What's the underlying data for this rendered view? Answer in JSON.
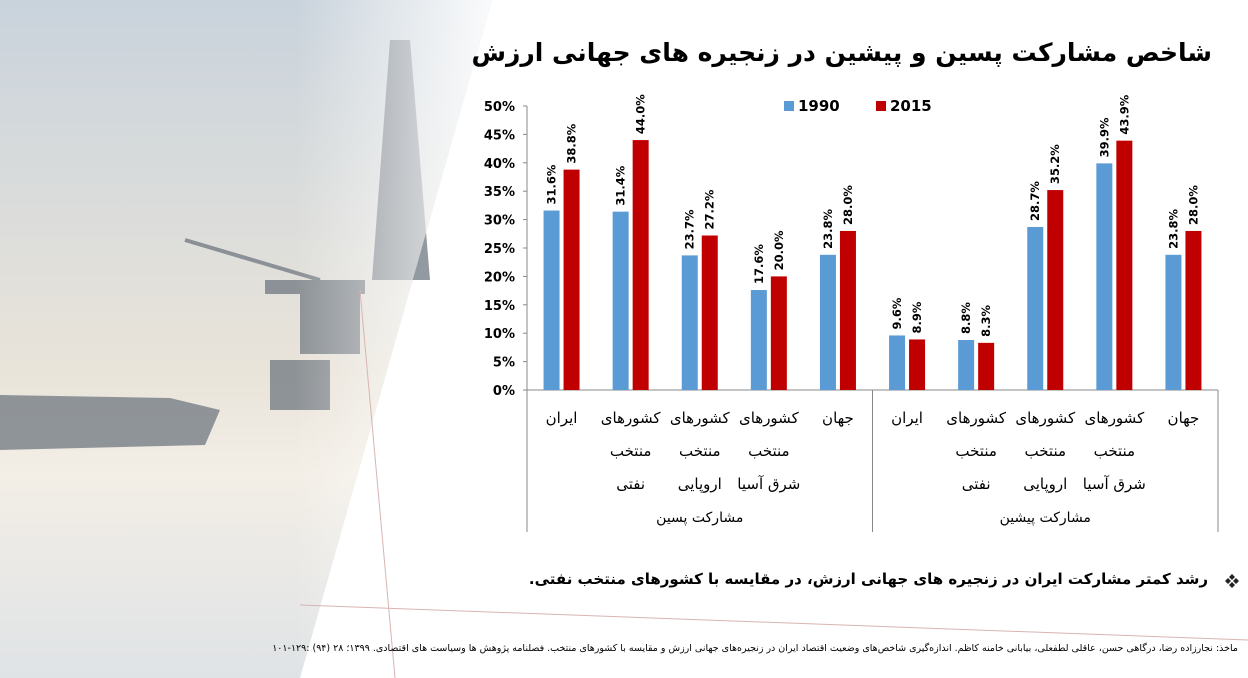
{
  "chart_data": {
    "type": "bar",
    "title": "شاخص مشارکت پسین و پیشین در زنجیره های جهانی ارزش",
    "categories": [
      "ایران",
      "کشورهای منتخب نفتی",
      "کشورهای منتخب اروپایی",
      "کشورهای منتخب شرق آسیا",
      "جهان",
      "ایران",
      "کشورهای منتخب نفتی",
      "کشورهای منتخب اروپایی",
      "کشورهای منتخب شرق آسیا",
      "جهان"
    ],
    "group_labels": [
      "مشارکت پسین",
      "مشارکت پیشین"
    ],
    "series": [
      {
        "name": "1990",
        "color": "#5b9bd5",
        "values": [
          31.6,
          31.4,
          23.7,
          17.6,
          23.8,
          9.6,
          8.8,
          28.7,
          39.9,
          23.8
        ],
        "value_labels": [
          "31.6%",
          "31.4%",
          "23.7%",
          "17.6%",
          "23.8%",
          "9.6%",
          "8.8%",
          "28.7%",
          "39.9%",
          "23.8%"
        ]
      },
      {
        "name": "2015",
        "color": "#c00000",
        "values": [
          38.8,
          44.0,
          27.2,
          20.0,
          28.0,
          8.9,
          8.3,
          35.2,
          43.9,
          28.0
        ],
        "value_labels": [
          "38.8%",
          "44.0%",
          "27.2%",
          "20.0%",
          "28.0%",
          "8.9%",
          "8.3%",
          "35.2%",
          "43.9%",
          "28.0%"
        ]
      }
    ],
    "ylim": [
      0,
      50
    ],
    "yticks": [
      {
        "value": 0,
        "label": "0%"
      },
      {
        "value": 5,
        "label": "5%"
      },
      {
        "value": 10,
        "label": "10%"
      },
      {
        "value": 15,
        "label": "15%"
      },
      {
        "value": 20,
        "label": "20%"
      },
      {
        "value": 25,
        "label": "25%"
      },
      {
        "value": 30,
        "label": "30%"
      },
      {
        "value": 35,
        "label": "35%"
      },
      {
        "value": 40,
        "label": "40%"
      },
      {
        "value": 45,
        "label": "45%"
      },
      {
        "value": 50,
        "label": "50%"
      }
    ],
    "legend": "top",
    "grid": false
  },
  "notes": {
    "bullet": "رشد کمتر مشارکت ایران در زنجیره های جهانی ارزش، در مقایسه با کشورهای منتخب نفتی.",
    "source": "ماخذ: نجارزاده رضا، درگاهی حسن، عاقلی لطفعلی، بیابانی خامنه کاظم. اندازه‌گیری شاخص‌های وضعیت اقتصاد ایران در زنجیره‌های جهانی ارزش و مقایسه با کشورهای منتخب. فصلنامه پژوهش ها وسیاست های اقتصادی. ۱۳۹۹؛ ۲۸ (۹۴) :۱۲۹-۱۰۱"
  }
}
